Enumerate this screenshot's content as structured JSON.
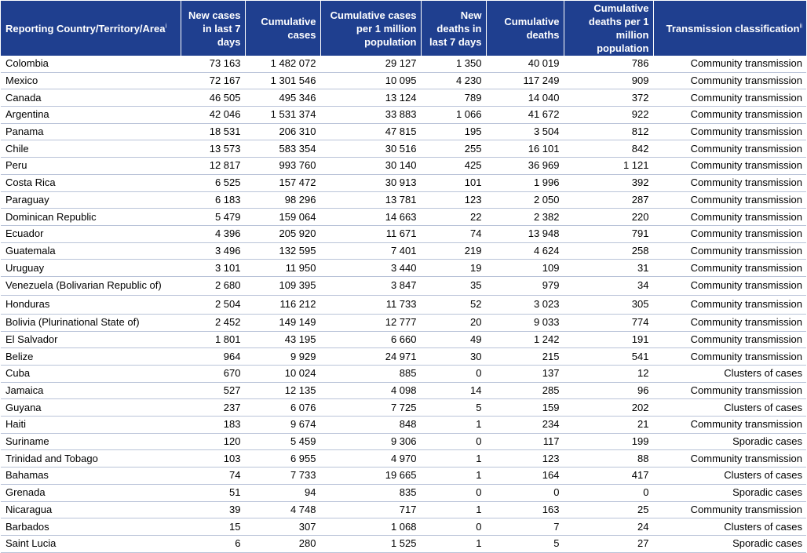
{
  "headers": {
    "country": "Reporting Country/Territory/Area",
    "country_note": "i",
    "new_cases": "New cases in last 7 days",
    "cum_cases": "Cumulative cases",
    "cum_cases_per_m": "Cumulative cases per 1 million population",
    "new_deaths": "New deaths in last 7 days",
    "cum_deaths": "Cumulative deaths",
    "cum_deaths_per_m": "Cumulative deaths per 1 million population",
    "transmission": "Transmission classification",
    "transmission_note": "ii"
  },
  "rows": [
    [
      "Colombia",
      "73 163",
      "1 482 072",
      "29 127",
      "1 350",
      "40 019",
      "786",
      "Community transmission"
    ],
    [
      "Mexico",
      "72 167",
      "1 301 546",
      "10 095",
      "4 230",
      "117 249",
      "909",
      "Community transmission"
    ],
    [
      "Canada",
      "46 505",
      "495 346",
      "13 124",
      "789",
      "14 040",
      "372",
      "Community transmission"
    ],
    [
      "Argentina",
      "42 046",
      "1 531 374",
      "33 883",
      "1 066",
      "41 672",
      "922",
      "Community transmission"
    ],
    [
      "Panama",
      "18 531",
      "206 310",
      "47 815",
      "195",
      "3 504",
      "812",
      "Community transmission"
    ],
    [
      "Chile",
      "13 573",
      "583 354",
      "30 516",
      "255",
      "16 101",
      "842",
      "Community transmission"
    ],
    [
      "Peru",
      "12 817",
      "993 760",
      "30 140",
      "425",
      "36 969",
      "1 121",
      "Community transmission"
    ],
    [
      "Costa Rica",
      "6 525",
      "157 472",
      "30 913",
      "101",
      "1 996",
      "392",
      "Community transmission"
    ],
    [
      "Paraguay",
      "6 183",
      "98 296",
      "13 781",
      "123",
      "2 050",
      "287",
      "Community transmission"
    ],
    [
      "Dominican Republic",
      "5 479",
      "159 064",
      "14 663",
      "22",
      "2 382",
      "220",
      "Community transmission"
    ],
    [
      "Ecuador",
      "4 396",
      "205 920",
      "11 671",
      "74",
      "13 948",
      "791",
      "Community transmission"
    ],
    [
      "Guatemala",
      "3 496",
      "132 595",
      "7 401",
      "219",
      "4 624",
      "258",
      "Community transmission"
    ],
    [
      "Uruguay",
      "3 101",
      "11 950",
      "3 440",
      "19",
      "109",
      "31",
      "Community transmission"
    ],
    [
      "Venezuela (Bolivarian Republic of)",
      "2 680",
      "109 395",
      "3 847",
      "35",
      "979",
      "34",
      "Community transmission"
    ],
    [
      "Honduras",
      "2 504",
      "116 212",
      "11 733",
      "52",
      "3 023",
      "305",
      "Community transmission"
    ],
    [
      "Bolivia (Plurinational State of)",
      "2 452",
      "149 149",
      "12 777",
      "20",
      "9 033",
      "774",
      "Community transmission"
    ],
    [
      "El Salvador",
      "1 801",
      "43 195",
      "6 660",
      "49",
      "1 242",
      "191",
      "Community transmission"
    ],
    [
      "Belize",
      "964",
      "9 929",
      "24 971",
      "30",
      "215",
      "541",
      "Community transmission"
    ],
    [
      "Cuba",
      "670",
      "10 024",
      "885",
      "0",
      "137",
      "12",
      "Clusters of cases"
    ],
    [
      "Jamaica",
      "527",
      "12 135",
      "4 098",
      "14",
      "285",
      "96",
      "Community transmission"
    ],
    [
      "Guyana",
      "237",
      "6 076",
      "7 725",
      "5",
      "159",
      "202",
      "Clusters of cases"
    ],
    [
      "Haiti",
      "183",
      "9 674",
      "848",
      "1",
      "234",
      "21",
      "Community transmission"
    ],
    [
      "Suriname",
      "120",
      "5 459",
      "9 306",
      "0",
      "117",
      "199",
      "Sporadic cases"
    ],
    [
      "Trinidad and Tobago",
      "103",
      "6 955",
      "4 970",
      "1",
      "123",
      "88",
      "Community transmission"
    ],
    [
      "Bahamas",
      "74",
      "7 733",
      "19 665",
      "1",
      "164",
      "417",
      "Clusters of cases"
    ],
    [
      "Grenada",
      "51",
      "94",
      "835",
      "0",
      "0",
      "0",
      "Sporadic cases"
    ],
    [
      "Nicaragua",
      "39",
      "4 748",
      "717",
      "1",
      "163",
      "25",
      "Community transmission"
    ],
    [
      "Barbados",
      "15",
      "307",
      "1 068",
      "0",
      "7",
      "24",
      "Clusters of cases"
    ],
    [
      "Saint Lucia",
      "6",
      "280",
      "1 525",
      "1",
      "5",
      "27",
      "Sporadic cases"
    ]
  ]
}
